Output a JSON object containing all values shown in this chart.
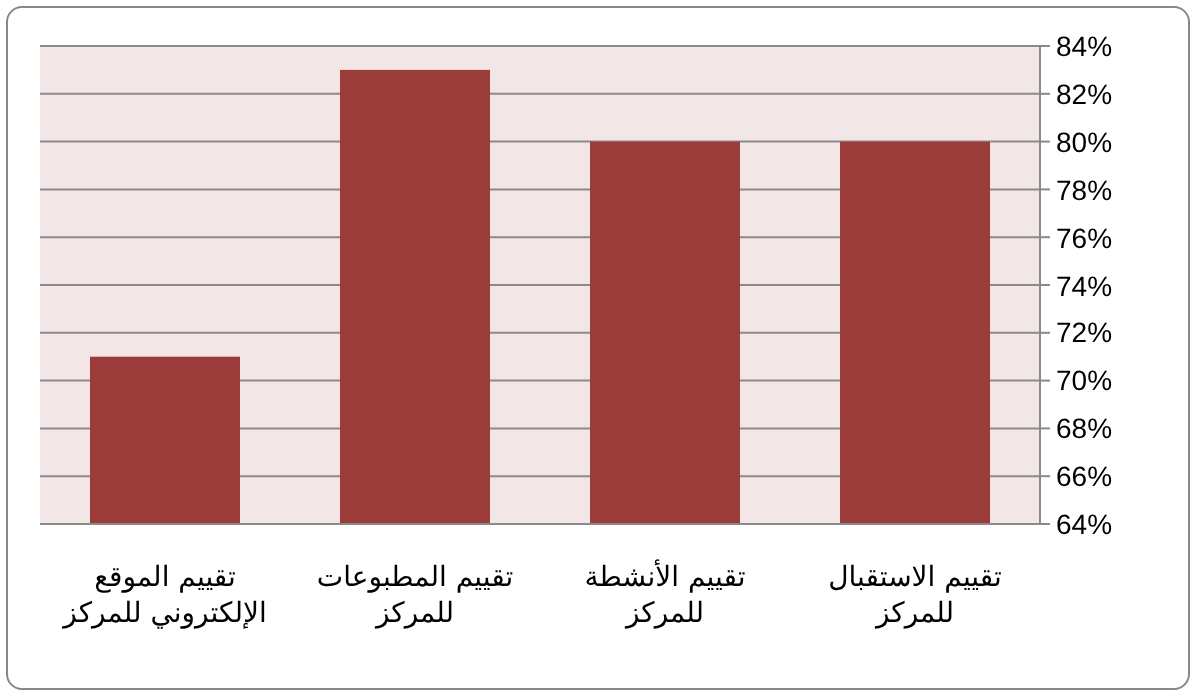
{
  "chart_data": {
    "type": "bar",
    "categories": [
      "تقييم الموقع الإلكتروني للمركز",
      "تقييم المطبوعات للمركز",
      "تقييم الأنشطة للمركز",
      "تقييم الاستقبال للمركز"
    ],
    "values": [
      71,
      83,
      80,
      80
    ],
    "color": "#9c3c3a",
    "ylim": [
      64,
      84
    ],
    "yticks": [
      {
        "value": 64,
        "label": "64%"
      },
      {
        "value": 66,
        "label": "66%"
      },
      {
        "value": 68,
        "label": "68%"
      },
      {
        "value": 70,
        "label": "70%"
      },
      {
        "value": 72,
        "label": "72%"
      },
      {
        "value": 74,
        "label": "74%"
      },
      {
        "value": 76,
        "label": "76%"
      },
      {
        "value": 78,
        "label": "78%"
      },
      {
        "value": 80,
        "label": "80%"
      },
      {
        "value": 82,
        "label": "82%"
      },
      {
        "value": 84,
        "label": "84%"
      }
    ],
    "grid": "y"
  }
}
